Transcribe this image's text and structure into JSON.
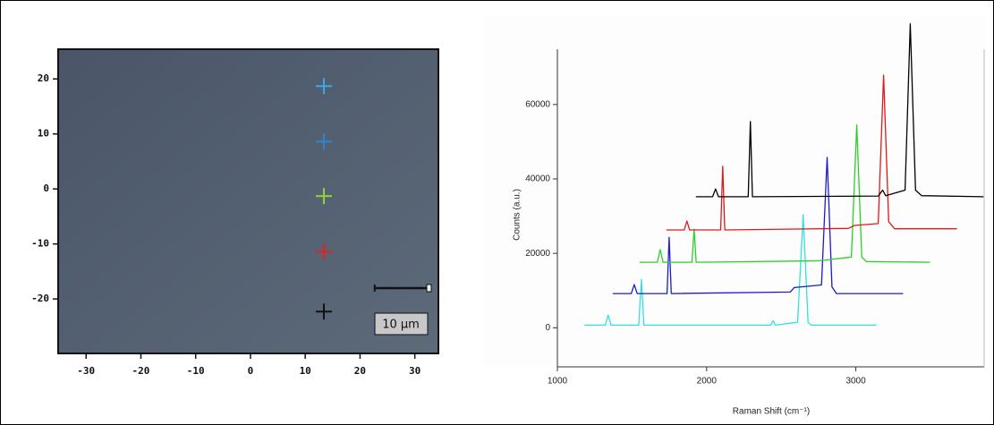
{
  "chart_data": [
    {
      "type": "scatter",
      "marker": "cross",
      "xlim": [
        -35.1,
        34.3
      ],
      "ylim": [
        -29.9,
        25.4
      ],
      "xticks": [
        -30,
        -20,
        -10,
        0,
        10,
        20,
        30
      ],
      "yticks": [
        20,
        10,
        0,
        -10,
        -20
      ],
      "series": [
        {
          "color": "#3aa8ea",
          "x": [
            13.4
          ],
          "values": [
            18.7
          ]
        },
        {
          "color": "#2f86c6",
          "x": [
            13.4
          ],
          "values": [
            8.6
          ]
        },
        {
          "color": "#93d13e",
          "x": [
            13.4
          ],
          "values": [
            -1.3
          ]
        },
        {
          "color": "#e3221f",
          "x": [
            13.4
          ],
          "values": [
            -11.4
          ]
        },
        {
          "color": "#111111",
          "x": [
            13.4
          ],
          "values": [
            -22.3
          ]
        }
      ],
      "scale_bar": {
        "length": 10,
        "label": "10 μm"
      }
    },
    {
      "type": "line",
      "xlabel": "Raman Shift (cm⁻¹)",
      "ylabel": "Counts (a.u.)",
      "xlim": [
        1000,
        3860
      ],
      "ylim": [
        -10500,
        84000
      ],
      "xticks": [
        1000,
        2000,
        3000
      ],
      "yticks": [
        0,
        20000,
        40000,
        60000
      ],
      "series": [
        {
          "color": "#33e0e0",
          "x": [
            1180,
            1320,
            1340,
            1360,
            1545,
            1563,
            1580,
            2430,
            2445,
            2460,
            2610,
            2647,
            2680,
            2700,
            3138
          ],
          "values": [
            700,
            700,
            3400,
            700,
            700,
            13000,
            700,
            700,
            1900,
            700,
            1500,
            30400,
            1500,
            700,
            700
          ]
        },
        {
          "color": "#1a1ad0",
          "x": [
            1371,
            1495,
            1515,
            1535,
            1735,
            1749,
            1763,
            2560,
            2587,
            2770,
            2808,
            2840,
            2870,
            3317
          ],
          "values": [
            9200,
            9200,
            11600,
            9200,
            9200,
            24300,
            9200,
            9600,
            10800,
            11500,
            45800,
            11000,
            9200,
            9200
          ]
        },
        {
          "color": "#2ad02a",
          "x": [
            1551,
            1670,
            1689,
            1708,
            1902,
            1916,
            1930,
            2750,
            2970,
            3006,
            3040,
            3070,
            3497
          ],
          "values": [
            17600,
            17600,
            21000,
            17600,
            17600,
            26500,
            17600,
            18000,
            19000,
            54500,
            19000,
            17800,
            17600
          ]
        },
        {
          "color": "#e01818",
          "x": [
            1731,
            1850,
            1868,
            1886,
            2094,
            2108,
            2122,
            2950,
            2990,
            3150,
            3186,
            3220,
            3260,
            3677
          ],
          "values": [
            26300,
            26300,
            28700,
            26300,
            26300,
            43400,
            26300,
            26700,
            27500,
            28000,
            67900,
            28500,
            26600,
            26600
          ]
        },
        {
          "color": "#000000",
          "x": [
            1928,
            2040,
            2060,
            2080,
            2279,
            2293,
            2307,
            3150,
            3180,
            3200,
            3330,
            3365,
            3400,
            3440,
            3856
          ],
          "values": [
            35200,
            35200,
            37300,
            35200,
            35200,
            55400,
            35200,
            35400,
            37000,
            35500,
            37000,
            81700,
            37000,
            35500,
            35200
          ]
        }
      ]
    }
  ]
}
